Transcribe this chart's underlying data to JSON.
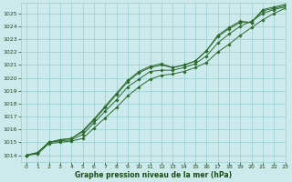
{
  "bg_color": "#cceaec",
  "grid_color": "#99cccc",
  "line_color": "#2d6a2d",
  "marker_color": "#2d6a2d",
  "xlabel": "Graphe pression niveau de la mer (hPa)",
  "xlabel_color": "#1a4a1a",
  "xlim": [
    -0.5,
    23
  ],
  "ylim": [
    1013.5,
    1025.8
  ],
  "yticks": [
    1014,
    1015,
    1016,
    1017,
    1018,
    1019,
    1020,
    1021,
    1022,
    1023,
    1024,
    1025
  ],
  "xticks": [
    0,
    1,
    2,
    3,
    4,
    5,
    6,
    7,
    8,
    9,
    10,
    11,
    12,
    13,
    14,
    15,
    16,
    17,
    18,
    19,
    20,
    21,
    22,
    23
  ],
  "series": [
    [
      1014.0,
      1014.1,
      1014.9,
      1015.0,
      1015.1,
      1015.3,
      1016.1,
      1016.9,
      1017.7,
      1018.6,
      1019.3,
      1019.9,
      1020.2,
      1020.3,
      1020.5,
      1020.8,
      1021.2,
      1022.0,
      1022.6,
      1023.3,
      1023.9,
      1024.5,
      1025.0,
      1025.4
    ],
    [
      1014.0,
      1014.2,
      1015.0,
      1015.1,
      1015.2,
      1015.6,
      1016.5,
      1017.4,
      1018.3,
      1019.3,
      1019.9,
      1020.5,
      1020.6,
      1020.6,
      1020.8,
      1021.1,
      1021.7,
      1022.7,
      1023.4,
      1024.0,
      1024.4,
      1025.0,
      1025.3,
      1025.5
    ],
    [
      1014.0,
      1014.2,
      1015.0,
      1015.2,
      1015.3,
      1015.8,
      1016.7,
      1017.7,
      1018.7,
      1019.7,
      1020.4,
      1020.8,
      1021.0,
      1020.8,
      1021.0,
      1021.3,
      1022.1,
      1023.2,
      1023.8,
      1024.3,
      1024.3,
      1025.2,
      1025.4,
      1025.6
    ],
    [
      1014.0,
      1014.2,
      1015.0,
      1015.2,
      1015.3,
      1015.9,
      1016.8,
      1017.8,
      1018.8,
      1019.8,
      1020.5,
      1020.9,
      1021.1,
      1020.8,
      1021.0,
      1021.3,
      1022.1,
      1023.3,
      1023.9,
      1024.4,
      1024.3,
      1025.3,
      1025.5,
      1025.7
    ]
  ]
}
